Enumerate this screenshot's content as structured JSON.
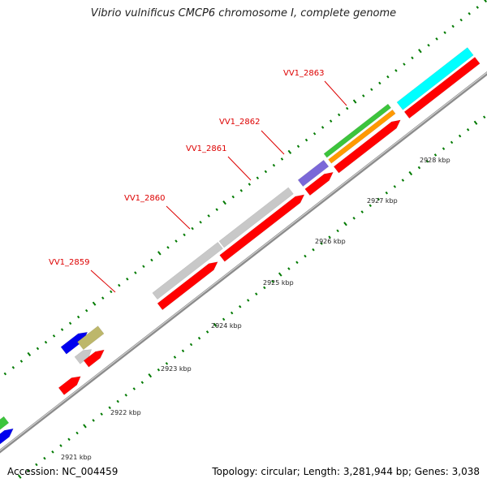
{
  "title": "Vibrio vulnificus CMCP6 chromosome I, complete genome",
  "footer": {
    "accession_label": "Accession:",
    "accession": "NC_004459",
    "topology_text": "Topology: circular; Length: 3,281,944 bp; Genes: 3,038"
  },
  "colors": {
    "backbone": "#8c8c8c",
    "red": "#ff0000",
    "grey": "#c8c8c8",
    "purple": "#7b68d8",
    "green": "#3cc43c",
    "orange": "#ff9900",
    "cyan": "#00ffff",
    "olive": "#bdb76b",
    "blue": "#0000ee",
    "label": "#dd0000",
    "tick": "#007a00"
  },
  "scale_labels": [
    "2921 kbp",
    "2922 kbp",
    "2923 kbp",
    "2924 kbp",
    "2925 kbp",
    "2926 kbp",
    "2927 kbp",
    "2928 kbp"
  ],
  "gene_labels": [
    "VV1_2859",
    "VV1_2860",
    "VV1_2861",
    "VV1_2862",
    "VV1_2863"
  ]
}
